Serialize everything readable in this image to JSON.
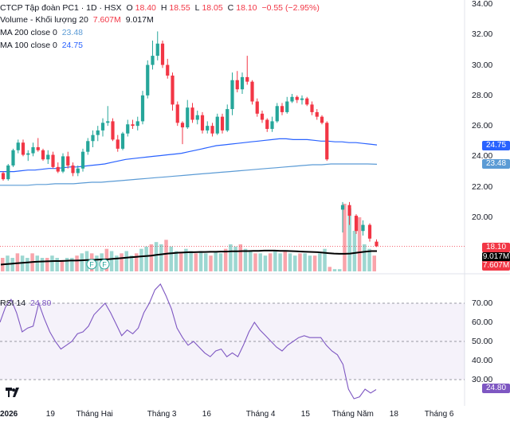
{
  "header": {
    "title": "CTCP Tập đoàn PC1 · 1D · HSX",
    "o_label": "O",
    "o_value": "18.40",
    "h_label": "H",
    "h_value": "18.55",
    "l_label": "L",
    "l_value": "18.05",
    "c_label": "C",
    "c_value": "18.10",
    "change": "−0.55 (−2.95%)"
  },
  "legends": {
    "volume_label": "Volume - Khối lượng 20",
    "volume_value": "7.607M",
    "volume_ma": "9.017M",
    "ma200_label": "MA 200 close 0",
    "ma200_value": "23.48",
    "ma100_label": "MA 100 close 0",
    "ma100_value": "24.75",
    "rsi_label": "RSI 14",
    "rsi_value": "24.80"
  },
  "colors": {
    "up": "#26a69a",
    "down": "#f23645",
    "ma100": "#2962ff",
    "ma200": "#5b9bd5",
    "rsi": "#7e57c2",
    "volume_ma": "#000000"
  },
  "price_axis": [
    "34.00",
    "32.00",
    "30.00",
    "28.00",
    "26.00",
    "24.00",
    "22.00",
    "20.00"
  ],
  "rsi_axis": [
    "70.00",
    "60.00",
    "50.00",
    "40.00",
    "30.00"
  ],
  "time_axis": [
    "2026",
    "19",
    "Tháng Hai",
    "Tháng 3",
    "16",
    "Tháng 4",
    "15",
    "Tháng Năm",
    "18",
    "Tháng 6"
  ],
  "tags": {
    "price": "18.10",
    "volume_ma": "9.017M",
    "volume": "7.607M",
    "ma100": "24.75",
    "ma200": "23.48",
    "rsi": "24.80"
  },
  "events": [
    "F",
    "F"
  ],
  "chart_data": {
    "type": "candlestick",
    "price_ylim": [
      18.0,
      34.0
    ],
    "rsi_ylim": [
      18,
      82
    ],
    "candles": [
      [
        22.9,
        23.0,
        22.4,
        22.5
      ],
      [
        22.5,
        23.5,
        22.4,
        23.4
      ],
      [
        23.4,
        24.5,
        23.3,
        24.4
      ],
      [
        24.4,
        25.1,
        24.2,
        24.9
      ],
      [
        24.9,
        25.1,
        24.0,
        24.1
      ],
      [
        24.1,
        24.4,
        23.7,
        24.2
      ],
      [
        24.2,
        24.9,
        24.0,
        24.6
      ],
      [
        24.6,
        25.2,
        24.3,
        24.4
      ],
      [
        24.4,
        24.5,
        23.7,
        23.8
      ],
      [
        23.8,
        24.4,
        23.5,
        24.1
      ],
      [
        24.1,
        24.3,
        23.2,
        23.3
      ],
      [
        23.3,
        23.6,
        22.9,
        23.0
      ],
      [
        23.0,
        24.2,
        22.9,
        24.0
      ],
      [
        24.0,
        24.3,
        23.2,
        23.4
      ],
      [
        23.4,
        23.6,
        22.7,
        22.9
      ],
      [
        22.9,
        23.4,
        22.7,
        23.2
      ],
      [
        23.2,
        24.5,
        23.0,
        24.3
      ],
      [
        24.3,
        25.2,
        24.1,
        25.0
      ],
      [
        25.0,
        25.7,
        24.6,
        25.4
      ],
      [
        25.4,
        26.0,
        25.0,
        25.7
      ],
      [
        25.7,
        26.5,
        25.3,
        26.2
      ],
      [
        26.2,
        27.3,
        26.0,
        26.3
      ],
      [
        26.3,
        26.5,
        25.0,
        25.1
      ],
      [
        25.1,
        25.4,
        24.3,
        24.5
      ],
      [
        24.5,
        25.6,
        24.4,
        25.5
      ],
      [
        25.5,
        26.4,
        25.3,
        26.1
      ],
      [
        26.1,
        26.4,
        25.8,
        26.0
      ],
      [
        26.0,
        26.6,
        25.7,
        26.3
      ],
      [
        26.3,
        28.3,
        26.1,
        28.0
      ],
      [
        28.0,
        30.3,
        27.8,
        30.0
      ],
      [
        30.0,
        31.6,
        29.7,
        30.6
      ],
      [
        30.6,
        32.2,
        30.3,
        31.4
      ],
      [
        31.4,
        31.6,
        29.8,
        30.0
      ],
      [
        30.0,
        30.4,
        29.1,
        29.3
      ],
      [
        29.3,
        29.5,
        27.0,
        27.4
      ],
      [
        27.4,
        27.6,
        26.0,
        26.2
      ],
      [
        26.2,
        26.3,
        24.8,
        25.9
      ],
      [
        25.9,
        27.7,
        25.8,
        27.2
      ],
      [
        27.2,
        27.5,
        26.2,
        26.4
      ],
      [
        26.4,
        27.0,
        26.1,
        26.7
      ],
      [
        26.7,
        26.9,
        25.5,
        25.7
      ],
      [
        25.7,
        26.3,
        25.5,
        26.0
      ],
      [
        26.0,
        26.2,
        25.3,
        25.5
      ],
      [
        25.5,
        26.8,
        25.4,
        26.6
      ],
      [
        26.6,
        26.8,
        25.5,
        25.7
      ],
      [
        25.7,
        27.4,
        25.6,
        27.1
      ],
      [
        27.1,
        29.5,
        26.7,
        29.0
      ],
      [
        29.0,
        29.6,
        28.2,
        28.4
      ],
      [
        28.4,
        29.5,
        28.1,
        29.2
      ],
      [
        29.2,
        30.6,
        28.7,
        28.9
      ],
      [
        28.9,
        29.0,
        27.4,
        27.6
      ],
      [
        27.6,
        27.8,
        26.6,
        26.8
      ],
      [
        26.8,
        27.0,
        26.2,
        26.4
      ],
      [
        26.4,
        26.5,
        25.6,
        25.8
      ],
      [
        25.8,
        26.6,
        25.6,
        26.3
      ],
      [
        26.3,
        27.5,
        26.2,
        27.3
      ],
      [
        27.3,
        27.5,
        26.7,
        26.9
      ],
      [
        26.9,
        27.9,
        26.8,
        27.6
      ],
      [
        27.6,
        28.1,
        27.5,
        27.9
      ],
      [
        27.9,
        28.0,
        27.5,
        27.7
      ],
      [
        27.7,
        28.0,
        27.4,
        27.8
      ],
      [
        27.8,
        27.9,
        27.3,
        27.4
      ],
      [
        27.4,
        27.6,
        26.7,
        26.9
      ],
      [
        26.9,
        27.1,
        26.4,
        26.6
      ],
      [
        26.6,
        26.7,
        26.1,
        26.2
      ],
      [
        26.2,
        26.3,
        23.7,
        23.8
      ]
    ],
    "ma100": [
      23.0,
      23.0,
      23.0,
      23.05,
      23.1,
      23.1,
      23.15,
      23.2,
      23.2,
      23.25,
      23.3,
      23.3,
      23.35,
      23.4,
      23.45,
      23.5,
      23.6,
      23.7,
      23.8,
      23.85,
      23.9,
      23.95,
      24.0,
      24.05,
      24.1,
      24.15,
      24.2,
      24.3,
      24.4,
      24.5,
      24.6,
      24.7,
      24.75,
      24.8,
      24.85,
      24.9,
      24.95,
      25.0,
      25.05,
      25.1,
      25.15,
      25.15,
      25.1,
      25.1,
      25.1,
      25.05,
      25.0,
      25.0,
      24.95,
      24.95,
      24.9,
      24.9,
      24.85,
      24.8,
      24.75
    ],
    "ma200": [
      22.1,
      22.1,
      22.1,
      22.1,
      22.15,
      22.15,
      22.2,
      22.2,
      22.2,
      22.25,
      22.3,
      22.3,
      22.35,
      22.4,
      22.45,
      22.5,
      22.55,
      22.6,
      22.65,
      22.7,
      22.75,
      22.8,
      22.85,
      22.9,
      22.95,
      23.0,
      23.05,
      23.1,
      23.15,
      23.2,
      23.25,
      23.3,
      23.35,
      23.4,
      23.45,
      23.45,
      23.5,
      23.5,
      23.5,
      23.5,
      23.5,
      23.48
    ],
    "volume_bars": [
      6,
      7,
      6,
      8,
      7,
      6,
      8,
      7,
      6,
      6,
      7,
      6,
      5,
      6,
      6,
      7,
      8,
      9,
      8,
      7,
      8,
      10,
      9,
      7,
      8,
      9,
      7,
      8,
      10,
      11,
      12,
      13,
      12,
      14,
      11,
      9,
      8,
      10,
      9,
      8,
      9,
      8,
      7,
      9,
      8,
      10,
      12,
      11,
      12,
      10,
      9,
      8,
      8,
      7,
      8,
      9,
      8,
      9,
      8,
      7,
      8,
      8,
      7,
      7,
      8,
      10,
      2,
      1,
      1,
      30,
      28,
      18,
      24,
      12,
      10,
      7
    ],
    "volume_ma_series": [
      3,
      3.2,
      3.4,
      3.6,
      3.8,
      4,
      4.2,
      4.3,
      4.4,
      4.5,
      4.6,
      4.6,
      4.7,
      4.8,
      4.8,
      4.9,
      5,
      5.1,
      5.2,
      5.3,
      5.4,
      5.6,
      5.8,
      6,
      6.2,
      6.4,
      6.6,
      6.8,
      7,
      7.3,
      7.6,
      7.9,
      8.1,
      8.3,
      8.4,
      8.5,
      8.5,
      8.6,
      8.6,
      8.7,
      8.7,
      8.8,
      8.8,
      8.9,
      8.9,
      9,
      9,
      9.1,
      9.1,
      9.2,
      9.2,
      9.2,
      9.1,
      9.1,
      9,
      8.9,
      8.8,
      8.7,
      8.6,
      8.5,
      8.3,
      8.1,
      7.9,
      7.8,
      7.8,
      7.9,
      8.2,
      8.5,
      8.8,
      9.0,
      9.017
    ],
    "rsi": [
      60,
      68,
      72,
      65,
      55,
      57,
      58,
      70,
      62,
      55,
      50,
      46,
      48,
      50,
      54,
      55,
      58,
      64,
      67,
      70,
      65,
      59,
      53,
      56,
      54,
      57,
      65,
      70,
      77,
      80,
      74,
      67,
      57,
      52,
      48,
      50,
      47,
      44,
      42,
      45,
      46,
      42,
      44,
      42,
      48,
      55,
      60,
      56,
      53,
      50,
      47,
      45,
      48,
      50,
      52,
      53,
      52,
      52,
      52,
      48,
      45,
      43,
      38,
      25,
      20,
      21,
      25,
      23,
      24.8
    ],
    "later_candles": [
      [
        20.5,
        21.0,
        19.0,
        20.8
      ],
      [
        20.8,
        21.0,
        19.5,
        20.1
      ],
      [
        20.1,
        20.2,
        18.9,
        19.1
      ],
      [
        19.1,
        19.8,
        18.8,
        19.5
      ],
      [
        19.5,
        19.6,
        18.4,
        18.6
      ],
      [
        18.4,
        18.55,
        18.05,
        18.1
      ]
    ]
  }
}
